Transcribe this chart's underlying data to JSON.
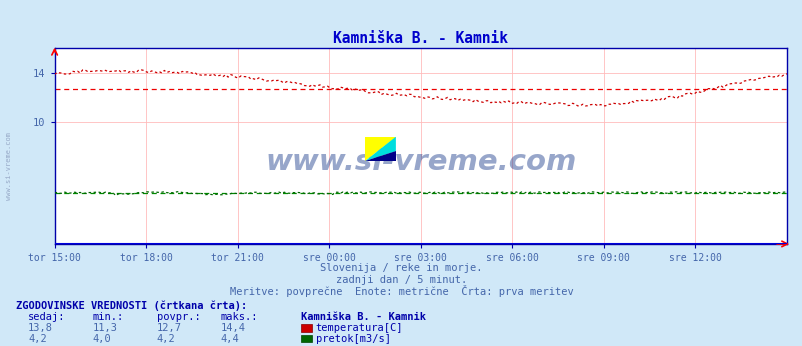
{
  "title": "Kamniška B. - Kamnik",
  "title_color": "#0000cc",
  "bg_color": "#d0e8f8",
  "plot_bg_color": "#ffffff",
  "grid_color": "#ffbbbb",
  "axis_color": "#0000aa",
  "text_color": "#4466aa",
  "xlabel_ticks": [
    "tor 15:00",
    "tor 18:00",
    "tor 21:00",
    "sre 00:00",
    "sre 03:00",
    "sre 06:00",
    "sre 09:00",
    "sre 12:00"
  ],
  "ylim": [
    0,
    16.0
  ],
  "num_points": 288,
  "temp_color": "#cc0000",
  "flow_color": "#006600",
  "avg_temp_color": "#ee0000",
  "avg_flow_color": "#008800",
  "temp_avg": 12.7,
  "flow_avg": 4.2,
  "temp_min": 11.3,
  "temp_max": 14.4,
  "flow_min": 4.0,
  "flow_max": 4.4,
  "watermark": "www.si-vreme.com",
  "watermark_color": "#1a3a8a",
  "subtitle1": "Slovenija / reke in morje.",
  "subtitle2": "zadnji dan / 5 minut.",
  "subtitle3": "Meritve: povprečne  Enote: metrične  Črta: prva meritev",
  "legend_title": "ZGODOVINSKE VREDNOSTI (črtkana črta):",
  "col_headers": [
    "sedaj:",
    "min.:",
    "povpr.:",
    "maks.:",
    "Kamniška B. - Kamnik"
  ],
  "row1_vals": [
    "13,8",
    "11,3",
    "12,7",
    "14,4"
  ],
  "row1_label": "temperatura[C]",
  "row1_color": "#cc0000",
  "row2_vals": [
    "4,2",
    "4,0",
    "4,2",
    "4,4"
  ],
  "row2_label": "pretok[m3/s]",
  "row2_color": "#006600"
}
